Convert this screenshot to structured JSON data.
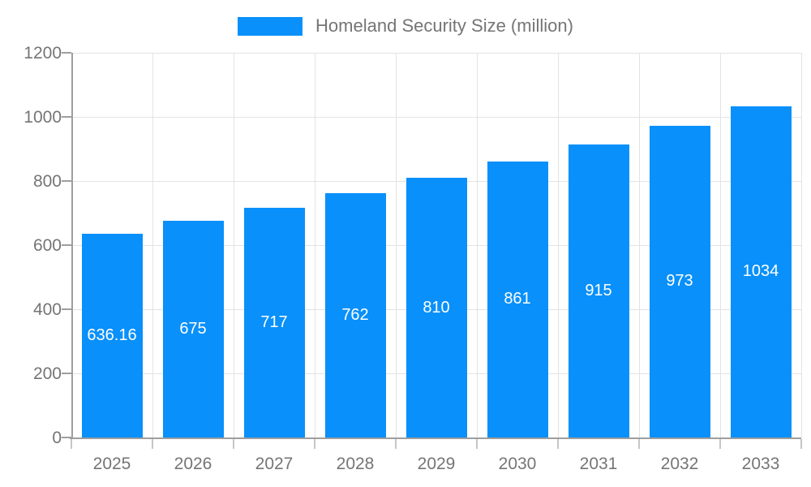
{
  "chart_data": {
    "type": "bar",
    "title": "Homeland Security Size (million)",
    "legend": {
      "position": "top",
      "label": "Homeland Security Size (million)"
    },
    "categories": [
      "2025",
      "2026",
      "2027",
      "2028",
      "2029",
      "2030",
      "2031",
      "2032",
      "2033"
    ],
    "values": [
      636.16,
      675,
      717,
      762,
      810,
      861,
      915,
      973,
      1034
    ],
    "value_labels": [
      "636.16",
      "675",
      "717",
      "762",
      "810",
      "861",
      "915",
      "973",
      "1034"
    ],
    "xlabel": "",
    "ylabel": "",
    "ylim": [
      0,
      1200
    ],
    "yticks": [
      0,
      200,
      400,
      600,
      800,
      1000,
      1200
    ],
    "grid": true,
    "colors": {
      "bar": "#0990fa",
      "bar_label_text": "#ffffff",
      "axis_text": "#757575",
      "legend_text": "#757575",
      "gridline": "#e3e3e3",
      "axis_line": "#9e9e9e",
      "background": "#ffffff"
    }
  }
}
